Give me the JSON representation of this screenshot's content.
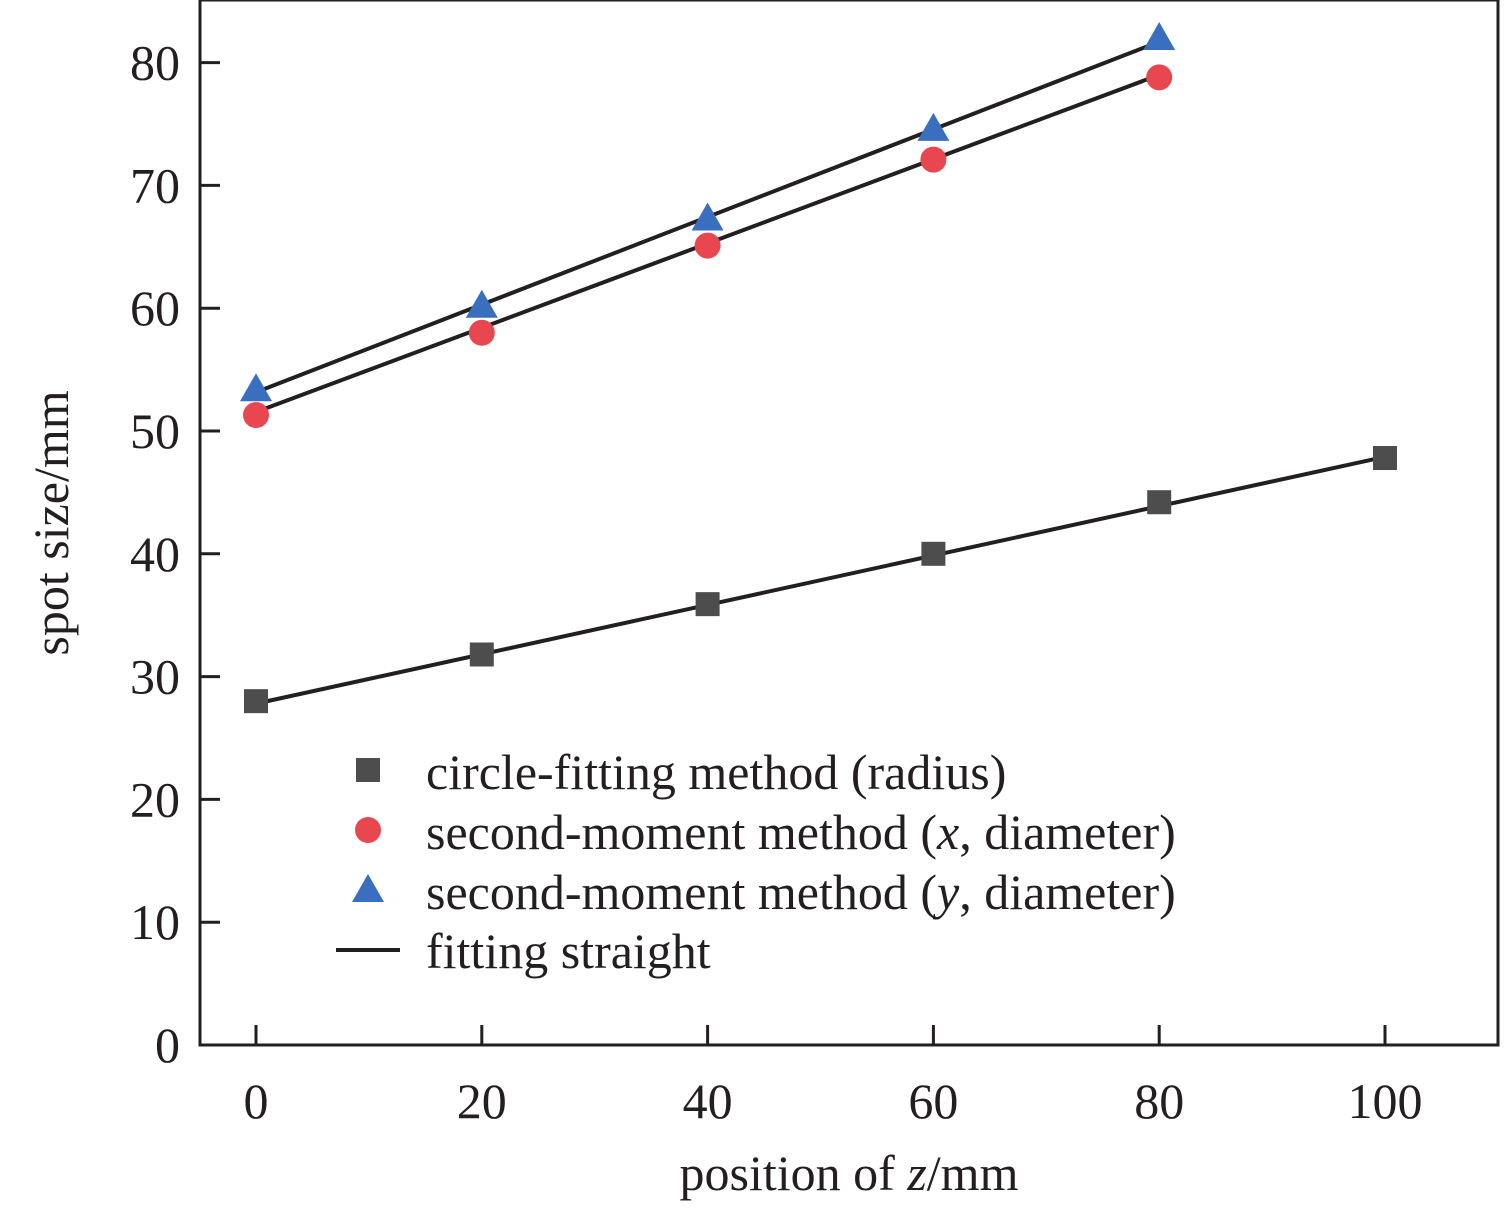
{
  "chart_data": {
    "type": "scatter",
    "title": "",
    "xlabel": "position of z/mm",
    "xlabel_parts": {
      "pre": "position of ",
      "italic": "z",
      "post": "/mm"
    },
    "ylabel": "spot size/mm",
    "xlim": [
      -5,
      110
    ],
    "ylim": [
      0,
      85
    ],
    "x_ticks": [
      0,
      20,
      40,
      60,
      80,
      100
    ],
    "y_ticks": [
      0,
      10,
      20,
      30,
      40,
      50,
      60,
      70,
      80
    ],
    "x_tick_labels": [
      "0",
      "20",
      "40",
      "60",
      "80",
      "100"
    ],
    "y_tick_labels": [
      "0",
      "10",
      "20",
      "30",
      "40",
      "50",
      "60",
      "70",
      "80"
    ],
    "grid": false,
    "legend_position": "lower-left",
    "series": [
      {
        "name": "circle-fitting method (radius)",
        "legend": {
          "pre": "circle-fitting method (radius)",
          "italic": "",
          "post": ""
        },
        "marker": "square",
        "color": "#4d4d4d",
        "x": [
          0,
          20,
          40,
          60,
          80,
          100
        ],
        "y": [
          28.0,
          31.8,
          35.9,
          40.0,
          44.2,
          47.8
        ],
        "fit": {
          "x": [
            0,
            100
          ],
          "y": [
            27.8,
            47.9
          ]
        }
      },
      {
        "name": "second-moment method (x, diameter)",
        "legend": {
          "pre": "second-moment method (",
          "italic": "x",
          "post": ", diameter)"
        },
        "marker": "circle",
        "color": "#e8474f",
        "x": [
          0,
          20,
          40,
          60,
          80
        ],
        "y": [
          51.3,
          58.0,
          65.1,
          72.1,
          78.8
        ],
        "fit": {
          "x": [
            -1,
            80
          ],
          "y": [
            51.2,
            79.0
          ]
        }
      },
      {
        "name": "second-moment method (y, diameter)",
        "legend": {
          "pre": "second-moment method (",
          "italic": "y",
          "post": ", diameter)"
        },
        "marker": "triangle",
        "color": "#3a6fbf",
        "x": [
          0,
          20,
          40,
          60,
          80
        ],
        "y": [
          53.4,
          60.2,
          67.3,
          74.6,
          82.0
        ],
        "fit": {
          "x": [
            -1,
            80
          ],
          "y": [
            52.8,
            81.7
          ]
        }
      }
    ],
    "fit_line": {
      "name": "fitting straight",
      "color": "#231f20"
    }
  }
}
